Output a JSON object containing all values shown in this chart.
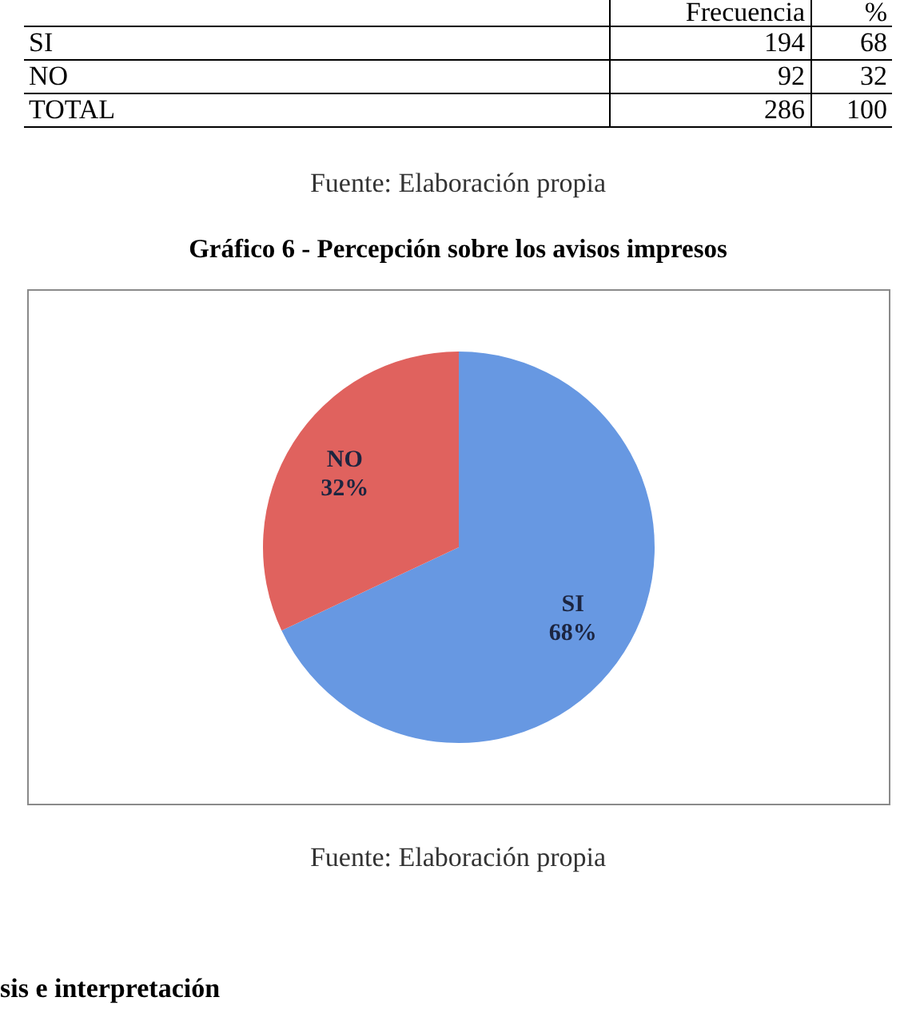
{
  "chart_data": [
    {
      "type": "other",
      "categories": [
        "SI",
        "NO",
        "TOTAL"
      ],
      "series": [
        {
          "name": "Frecuencia",
          "values": [
            194,
            92,
            286
          ]
        },
        {
          "name": "%",
          "values": [
            68,
            32,
            100
          ]
        }
      ],
      "data_labels": true,
      "annotations": [
        "Fuente: Elaboración propia"
      ]
    },
    {
      "type": "pie",
      "title": "Gráfico 6 - Percepción sobre los avisos impresos",
      "categories": [
        "SI",
        "NO"
      ],
      "values": [
        68,
        32
      ],
      "colors": [
        "#6798e2",
        "#e0625e"
      ],
      "value_labels": [
        "68%",
        "32%"
      ],
      "annotations": [
        "Fuente: Elaboración propia",
        "sis e interpretación"
      ]
    }
  ]
}
